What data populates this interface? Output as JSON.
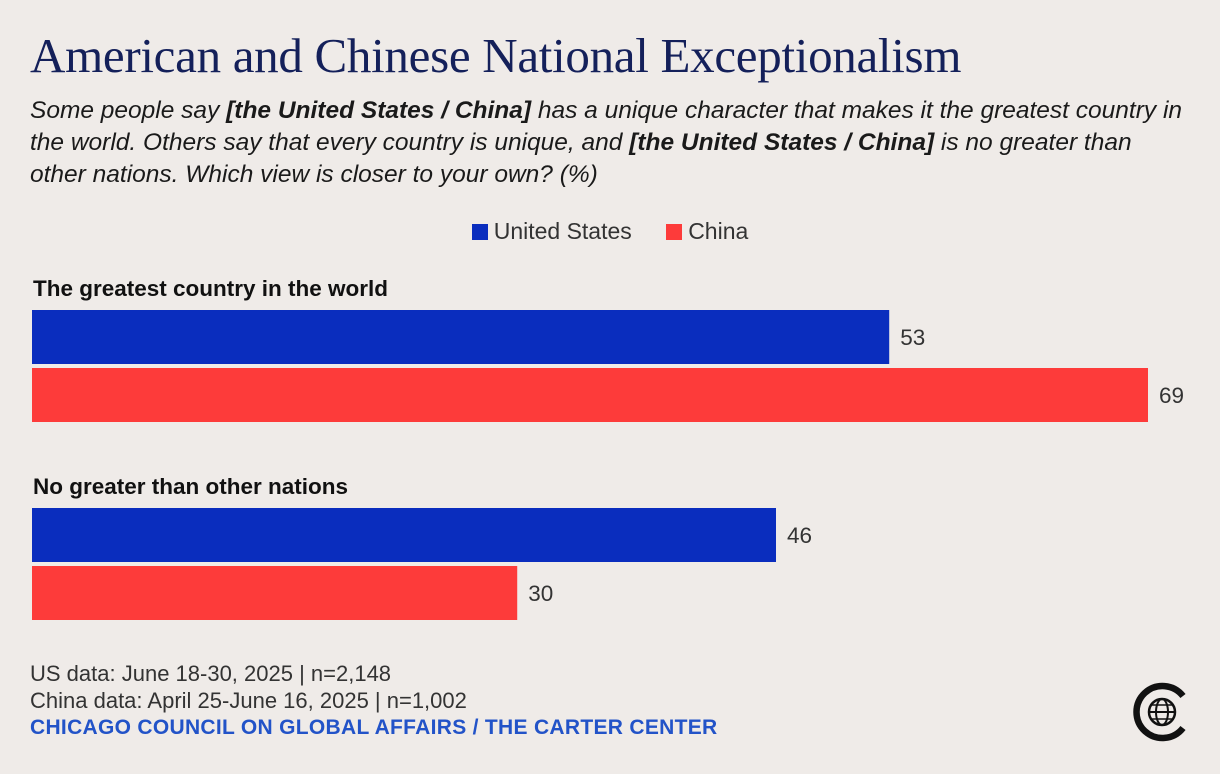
{
  "title": "American and Chinese National Exceptionalism",
  "subtitle": {
    "part1": "Some people say ",
    "bold1": "[the United States / China]",
    "part2": " has a unique character that makes it the greatest country in the world. Others say that every country is unique, and ",
    "bold2": "[the United States / China]",
    "part3": " is no greater than other nations. Which view is closer to your own? (%)"
  },
  "colors": {
    "us": "#0a2dbe",
    "china": "#fd3b3a"
  },
  "chart_data": {
    "type": "bar",
    "orientation": "horizontal",
    "title": "American and Chinese National Exceptionalism",
    "categories": [
      "The greatest country in the world",
      "No greater than other nations"
    ],
    "series": [
      {
        "name": "United States",
        "values": [
          53,
          46
        ]
      },
      {
        "name": "China",
        "values": [
          69,
          30
        ]
      }
    ],
    "xlim": [
      0,
      69
    ],
    "unit": "%",
    "legend": "top-center"
  },
  "footer": {
    "us_data": "US data: June 18-30, 2025 | n=2,148",
    "china_data": "China data: April 25-June 16, 2025 | n=1,002",
    "source": "CHICAGO COUNCIL ON GLOBAL AFFAIRS / THE CARTER CENTER"
  },
  "logo": {
    "icon": "globe-c-logo-icon"
  }
}
